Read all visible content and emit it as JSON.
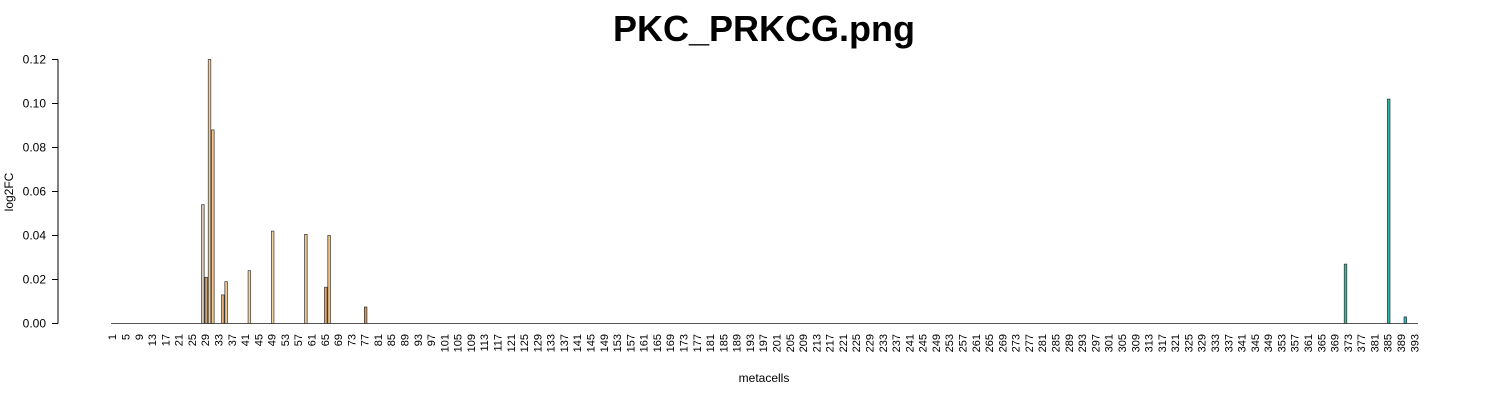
{
  "chart_data": {
    "type": "bar",
    "title": "PKC_PRKCG.png",
    "xlabel": "metacells",
    "ylabel": "log2FC",
    "ylim": [
      0,
      0.12
    ],
    "yticks": [
      "0.00",
      "0.02",
      "0.04",
      "0.06",
      "0.08",
      "0.10",
      "0.12"
    ],
    "xlim": [
      1,
      396
    ],
    "grid": false,
    "legend": "none",
    "bars": [
      {
        "x": 28,
        "value": 0.054,
        "color": "#d9c7b8"
      },
      {
        "x": 29,
        "value": 0.021,
        "color": "#c9a27a"
      },
      {
        "x": 30,
        "value": 0.12,
        "color": "#f2cf9a"
      },
      {
        "x": 31,
        "value": 0.088,
        "color": "#f0c488"
      },
      {
        "x": 34,
        "value": 0.013,
        "color": "#e8b47a"
      },
      {
        "x": 35,
        "value": 0.019,
        "color": "#f0c890"
      },
      {
        "x": 42,
        "value": 0.024,
        "color": "#f3d3a0"
      },
      {
        "x": 49,
        "value": 0.042,
        "color": "#f3d3a0"
      },
      {
        "x": 59,
        "value": 0.0405,
        "color": "#f0c488"
      },
      {
        "x": 65,
        "value": 0.0165,
        "color": "#e6a268"
      },
      {
        "x": 66,
        "value": 0.04,
        "color": "#f0c078"
      },
      {
        "x": 77,
        "value": 0.0075,
        "color": "#c9955e"
      },
      {
        "x": 372,
        "value": 0.027,
        "color": "#3fb79c"
      },
      {
        "x": 385,
        "value": 0.102,
        "color": "#26b9a8"
      },
      {
        "x": 390,
        "value": 0.003,
        "color": "#1fb6d4"
      }
    ]
  }
}
